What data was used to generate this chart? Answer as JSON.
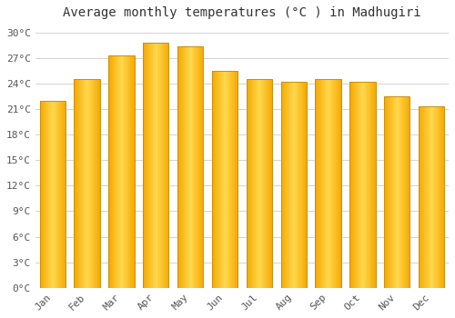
{
  "months": [
    "Jan",
    "Feb",
    "Mar",
    "Apr",
    "May",
    "Jun",
    "Jul",
    "Aug",
    "Sep",
    "Oct",
    "Nov",
    "Dec"
  ],
  "temperatures": [
    22.0,
    24.5,
    27.3,
    28.8,
    28.4,
    25.5,
    24.5,
    24.2,
    24.5,
    24.2,
    22.5,
    21.3
  ],
  "bar_color_center": "#FFD84D",
  "bar_color_edge": "#F5A800",
  "bar_outline_color": "#C8900A",
  "title": "Average monthly temperatures (°C ) in Madhugiri",
  "ylim": [
    0,
    31
  ],
  "yticks": [
    0,
    3,
    6,
    9,
    12,
    15,
    18,
    21,
    24,
    27,
    30
  ],
  "ytick_labels": [
    "0°C",
    "3°C",
    "6°C",
    "9°C",
    "12°C",
    "15°C",
    "18°C",
    "21°C",
    "24°C",
    "27°C",
    "30°C"
  ],
  "background_color": "#FFFFFF",
  "grid_color": "#CCCCCC",
  "title_fontsize": 10,
  "tick_fontsize": 8,
  "font_family": "monospace",
  "bar_width": 0.75
}
